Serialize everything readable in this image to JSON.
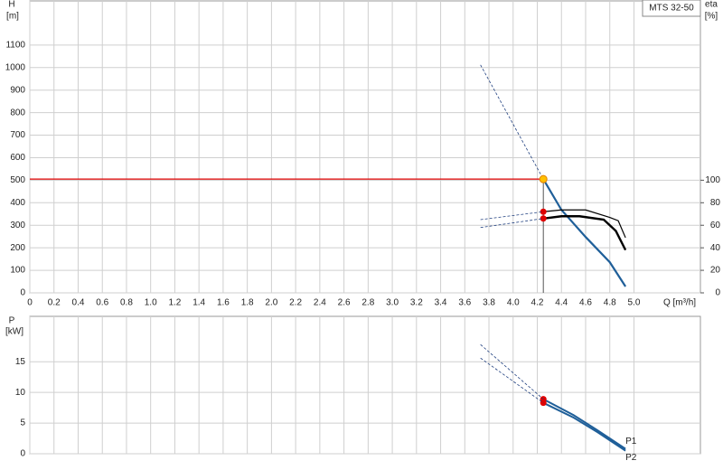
{
  "chart_data": [
    {
      "type": "line",
      "title": "MTS 32-50",
      "y_label": "H",
      "y_unit": "[m]",
      "y2_label": "eta",
      "y2_unit": "[%]",
      "x_label": "Q [m³/h]",
      "xlim": [
        0,
        5.55
      ],
      "xticks": [
        0,
        0.2,
        0.4,
        0.6,
        0.8,
        {
          "value": 1,
          "label": "1.0"
        },
        1.2,
        1.4,
        1.6,
        1.8,
        {
          "value": 2,
          "label": "2.0"
        },
        2.2,
        2.4,
        2.6,
        2.8,
        {
          "value": 3,
          "label": "3.0"
        },
        3.2,
        3.4,
        3.6,
        3.8,
        {
          "value": 4,
          "label": "4.0"
        },
        4.2,
        4.4,
        4.6,
        4.8,
        {
          "value": 5,
          "label": "5.0"
        }
      ],
      "ylim": [
        0,
        1296
      ],
      "yticks": [
        0,
        100,
        200,
        300,
        400,
        500,
        600,
        700,
        800,
        900,
        1000,
        1100
      ],
      "y2lim": [
        0,
        259.2
      ],
      "y2ticks": [
        0,
        20,
        40,
        60,
        80,
        100
      ],
      "grid": true,
      "operating_point": {
        "x": 4.25,
        "y": 505,
        "color": "#e00000"
      },
      "series": [
        {
          "color": "#1f5f99",
          "width": 2.2,
          "x": [
            4.25,
            4.4,
            4.6,
            4.8,
            4.93
          ],
          "values": [
            505,
            368,
            248,
            136,
            28
          ]
        },
        {
          "color": "#1f3f7f",
          "dashed": true,
          "x": [
            3.73,
            4.25
          ],
          "values": [
            1012,
            505
          ]
        },
        {
          "color": "#000000",
          "width": 1.2,
          "axis": "y2",
          "x": [
            4.25,
            4.4,
            4.6,
            4.8,
            4.87,
            4.93
          ],
          "values": [
            72,
            73.6,
            73.6,
            67,
            64,
            49
          ],
          "marker": "#e00000"
        },
        {
          "color": "#000000",
          "width": 2.4,
          "axis": "y2",
          "x": [
            4.25,
            4.4,
            4.55,
            4.75,
            4.85,
            4.93
          ],
          "values": [
            66,
            68,
            68,
            65,
            55,
            38
          ],
          "marker": "#e00000"
        },
        {
          "color": "#1f3f7f",
          "dashed": true,
          "axis": "y2",
          "x": [
            3.73,
            4.25
          ],
          "values": [
            65,
            72
          ]
        },
        {
          "color": "#1f3f7f",
          "dashed": true,
          "axis": "y2",
          "x": [
            3.73,
            4.25
          ],
          "values": [
            58,
            66
          ]
        }
      ]
    },
    {
      "type": "line",
      "y_label": "P",
      "y_unit": "[kW]",
      "xlim": [
        0,
        5.55
      ],
      "xticks": [
        0,
        0.2,
        0.4,
        0.6,
        0.8,
        1,
        1.2,
        1.4,
        1.6,
        1.8,
        2,
        2.2,
        2.4,
        2.6,
        2.8,
        3,
        3.2,
        3.4,
        3.6,
        3.8,
        4,
        4.2,
        4.4,
        4.6,
        4.8,
        5
      ],
      "xtick_labels": false,
      "ylim": [
        0,
        22.4
      ],
      "yticks": [
        0,
        5,
        10,
        15
      ],
      "grid": true,
      "series": [
        {
          "name": "P1",
          "color": "#1f5f99",
          "width": 2,
          "x": [
            4.25,
            4.5,
            4.7,
            4.93
          ],
          "values": [
            8.9,
            6.3,
            3.8,
            0.8
          ],
          "marker": "#e00000"
        },
        {
          "name": "P2",
          "color": "#1f5f99",
          "width": 2,
          "x": [
            4.25,
            4.5,
            4.7,
            4.93
          ],
          "values": [
            8.3,
            5.9,
            3.5,
            0.5
          ],
          "marker": "#e00000"
        },
        {
          "color": "#1f3f7f",
          "dashed": true,
          "x": [
            3.73,
            4.25
          ],
          "values": [
            17.8,
            8.9
          ]
        },
        {
          "color": "#1f3f7f",
          "dashed": true,
          "x": [
            3.73,
            4.25
          ],
          "values": [
            15.6,
            8.3
          ]
        }
      ]
    }
  ]
}
